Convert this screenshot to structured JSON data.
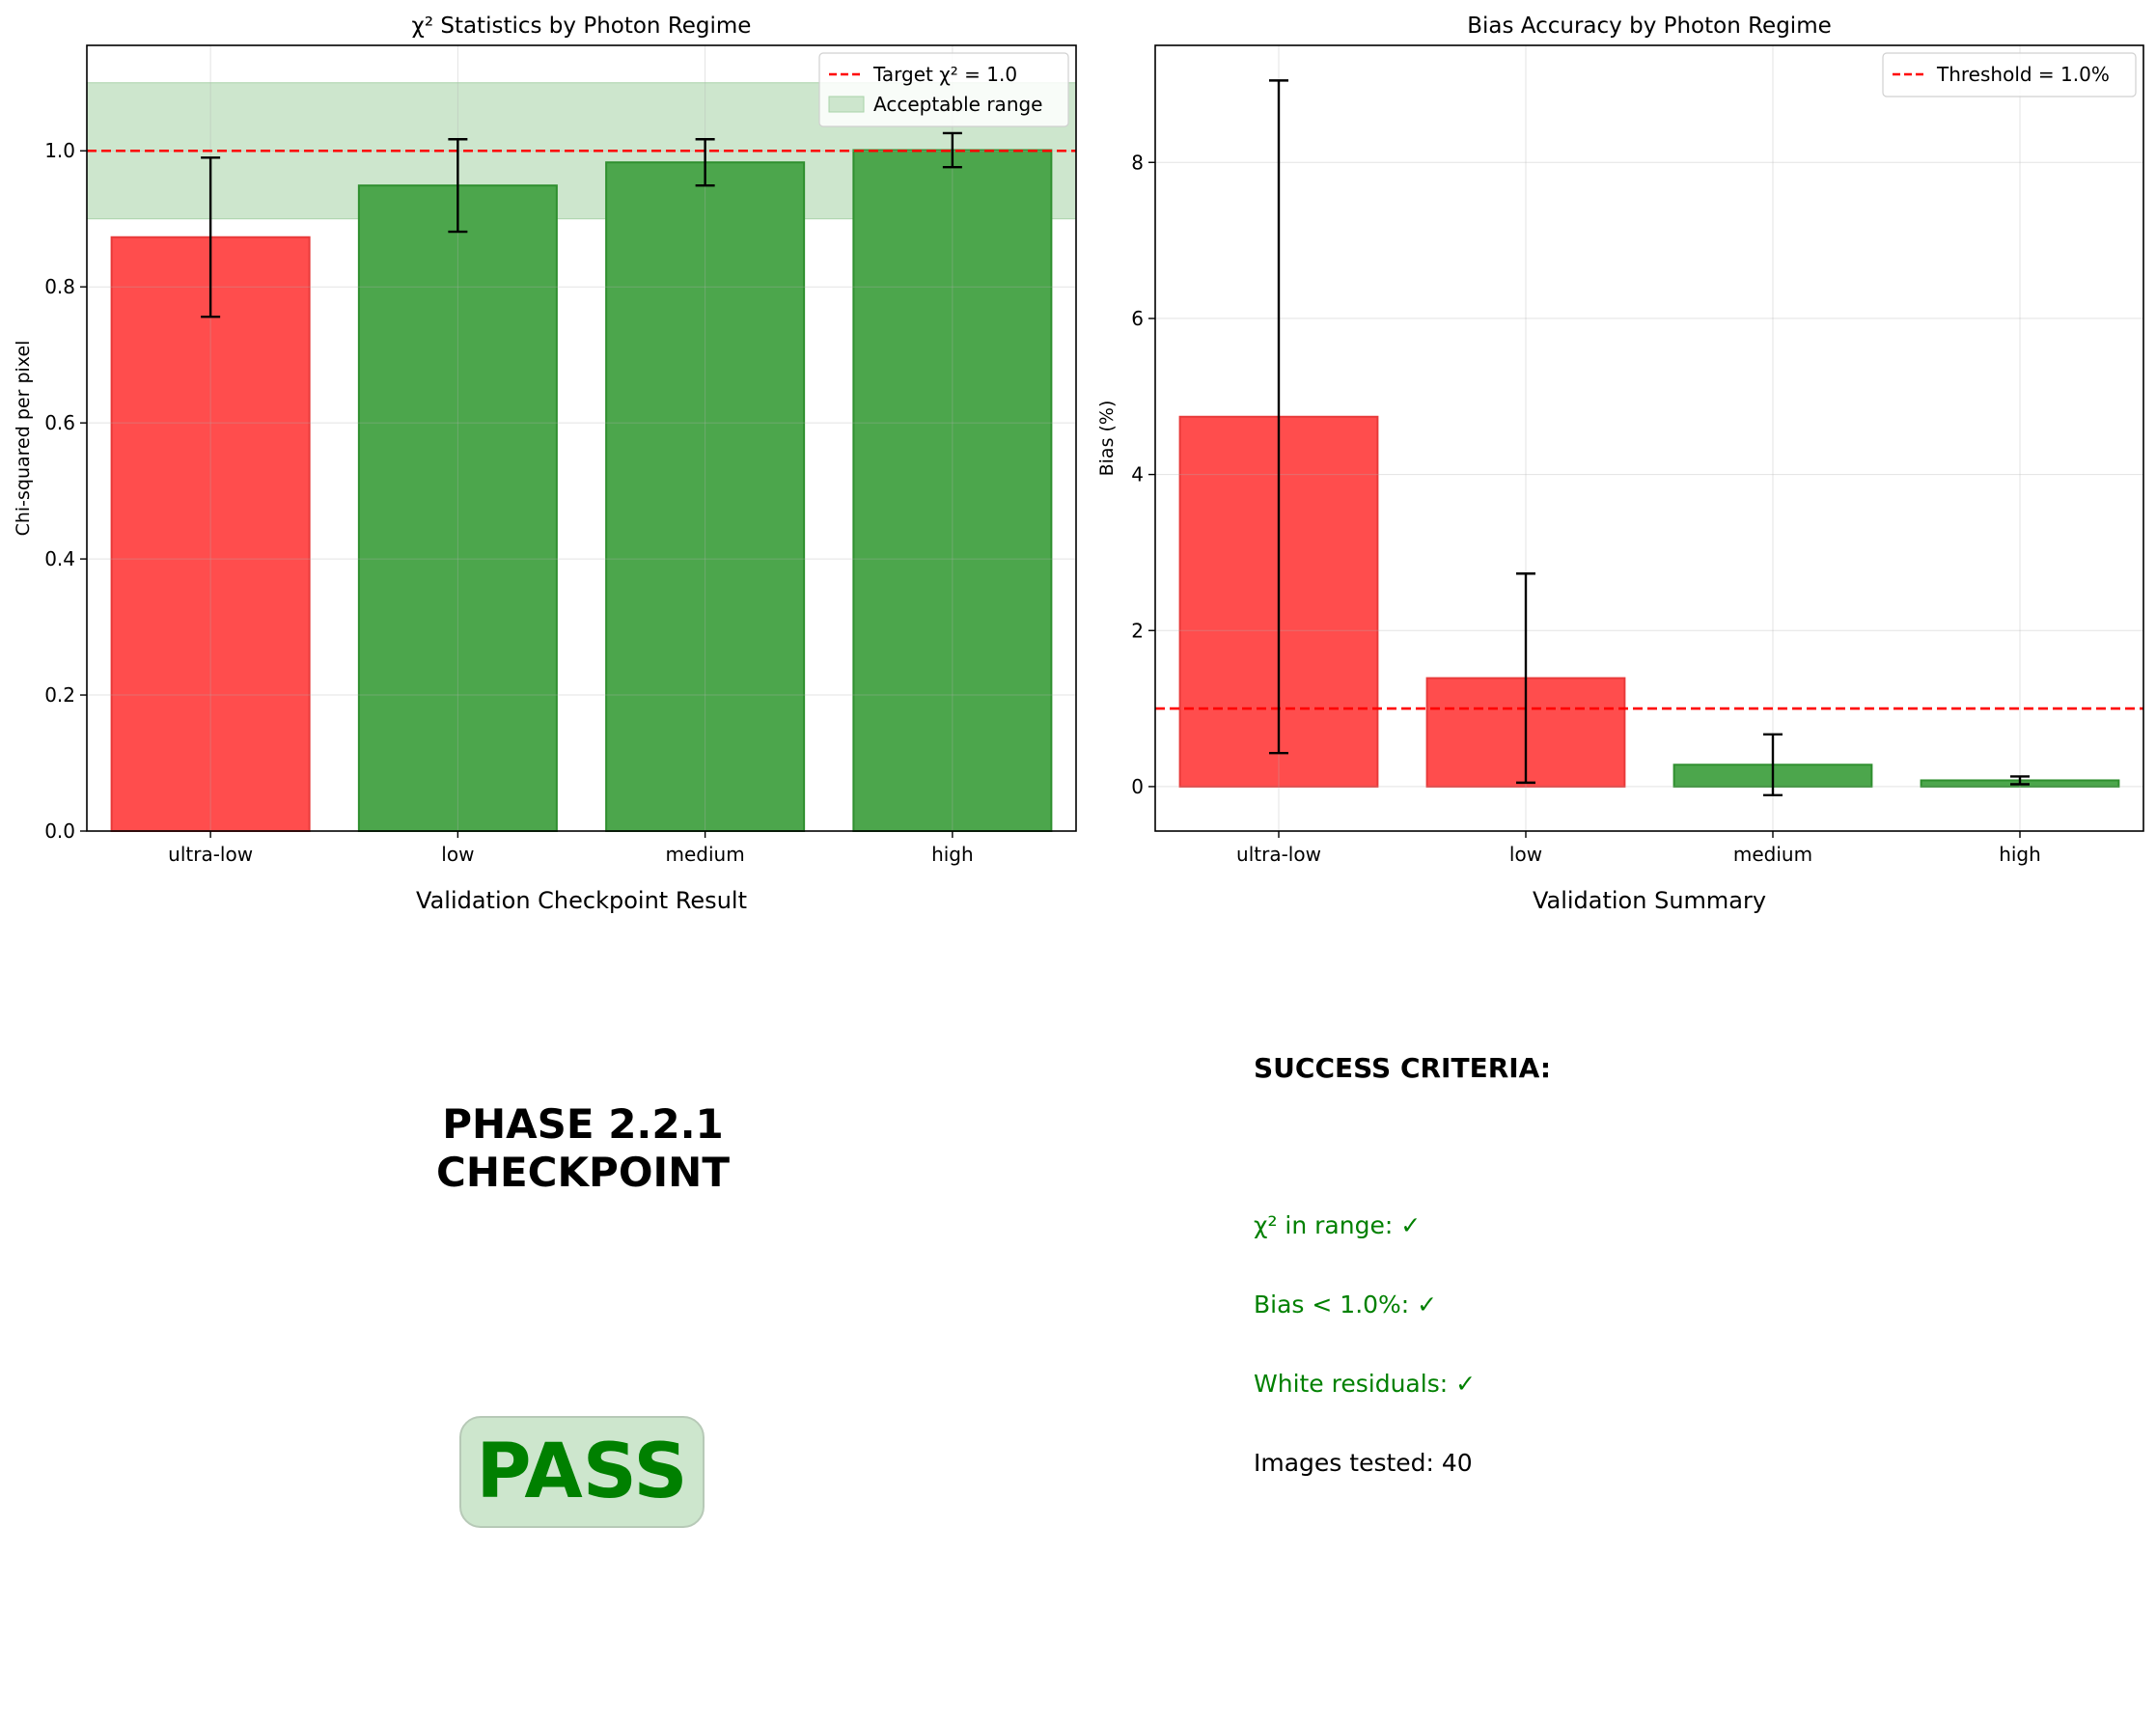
{
  "chart_data": [
    {
      "type": "bar",
      "title": "χ² Statistics by Photon Regime",
      "xlabel": "Validation Checkpoint Result",
      "ylabel": "Chi-squared per pixel",
      "categories": [
        "ultra-low",
        "low",
        "medium",
        "high"
      ],
      "values": [
        0.873,
        0.949,
        0.983,
        1.001
      ],
      "errors": [
        0.117,
        0.068,
        0.034,
        0.025
      ],
      "bar_colors": [
        "#ff4d4d",
        "#4ca64c",
        "#4ca64c",
        "#4ca64c"
      ],
      "ylim": [
        0,
        1.155
      ],
      "yticks": [
        "0.0",
        "0.2",
        "0.4",
        "0.6",
        "0.8",
        "1.0"
      ],
      "reference_line": {
        "value": 1.0,
        "label": "Target χ² = 1.0",
        "color": "#ff0000"
      },
      "band": {
        "range": [
          0.9,
          1.1
        ],
        "label": "Acceptable range",
        "color": "#cde6cd"
      },
      "legend": "top-right",
      "grid": true
    },
    {
      "type": "bar",
      "title": "Bias Accuracy by Photon Regime",
      "xlabel": "Validation Summary",
      "ylabel": "Bias (%)",
      "categories": [
        "ultra-low",
        "low",
        "medium",
        "high"
      ],
      "values": [
        4.74,
        1.39,
        0.28,
        0.08
      ],
      "errors": [
        4.31,
        1.34,
        0.39,
        0.05
      ],
      "bar_colors": [
        "#ff4d4d",
        "#ff4d4d",
        "#4ca64c",
        "#4ca64c"
      ],
      "ylim": [
        -0.57,
        9.5
      ],
      "yticks": [
        "0",
        "2",
        "4",
        "6",
        "8"
      ],
      "reference_line": {
        "value": 1.0,
        "label": "Threshold = 1.0%",
        "color": "#ff0000"
      },
      "legend": "top-right",
      "grid": true
    }
  ],
  "phase": {
    "line1": "PHASE 2.2.1",
    "line2": "CHECKPOINT"
  },
  "result": {
    "label": "PASS",
    "color": "#008000"
  },
  "criteria": {
    "heading": "SUCCESS CRITERIA:",
    "items": [
      "χ² in range: ✓",
      "Bias < 1.0%: ✓",
      "White residuals: ✓"
    ],
    "images_tested": "Images tested: 40"
  }
}
